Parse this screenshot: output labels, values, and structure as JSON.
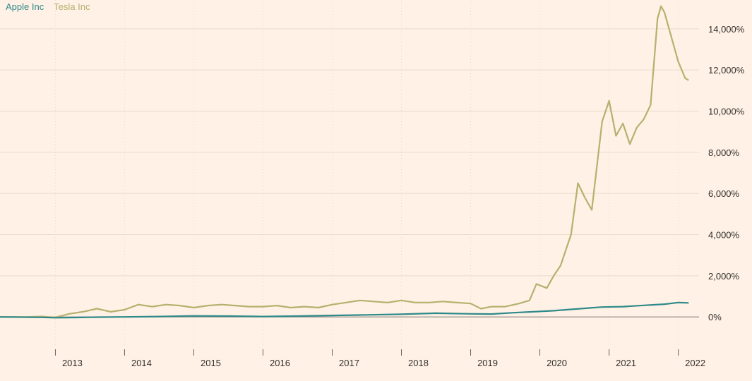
{
  "colors": {
    "background": "#fff1e5",
    "apple": "#2e8a8a",
    "tesla": "#b7b06e",
    "grid": "#e8dccd",
    "zero_line": "#8a8580"
  },
  "chart_data": {
    "type": "line",
    "legend_placement": "top-left",
    "grid": true,
    "y_axis_position": "right",
    "ylim": [
      -1400,
      15400
    ],
    "xlim": [
      2012.2,
      2022.3
    ],
    "y_ticks": [
      0,
      2000,
      4000,
      6000,
      8000,
      10000,
      12000,
      14000
    ],
    "y_tick_labels": [
      "0%",
      "2,000%",
      "4,000%",
      "6,000%",
      "8,000%",
      "10,000%",
      "12,000%",
      "14,000%"
    ],
    "x_ticks": [
      2013,
      2014,
      2015,
      2016,
      2017,
      2018,
      2019,
      2020,
      2021,
      2022
    ],
    "x_tick_labels": [
      "2013",
      "2014",
      "2015",
      "2016",
      "2017",
      "2018",
      "2019",
      "2020",
      "2021",
      "2022"
    ],
    "series": [
      {
        "name": "Apple Inc",
        "color": "#2e8a8a",
        "x": [
          2012.2,
          2012.8,
          2013.0,
          2013.3,
          2013.6,
          2014.0,
          2014.5,
          2015.0,
          2015.5,
          2016.0,
          2016.5,
          2017.0,
          2017.5,
          2018.0,
          2018.5,
          2019.0,
          2019.3,
          2019.6,
          2019.9,
          2020.2,
          2020.5,
          2020.7,
          2020.9,
          2021.2,
          2021.5,
          2021.8,
          2022.0,
          2022.15
        ],
        "values": [
          0,
          -20,
          -40,
          -30,
          -10,
          0,
          20,
          50,
          40,
          20,
          40,
          70,
          100,
          130,
          180,
          150,
          140,
          200,
          250,
          300,
          380,
          430,
          480,
          500,
          560,
          620,
          700,
          680
        ]
      },
      {
        "name": "Tesla Inc",
        "color": "#b7b06e",
        "x": [
          2012.2,
          2012.6,
          2012.8,
          2013.0,
          2013.2,
          2013.4,
          2013.6,
          2013.8,
          2014.0,
          2014.2,
          2014.4,
          2014.6,
          2014.8,
          2015.0,
          2015.2,
          2015.4,
          2015.6,
          2015.8,
          2016.0,
          2016.2,
          2016.4,
          2016.6,
          2016.8,
          2017.0,
          2017.2,
          2017.4,
          2017.6,
          2017.8,
          2018.0,
          2018.2,
          2018.4,
          2018.6,
          2018.8,
          2019.0,
          2019.15,
          2019.3,
          2019.5,
          2019.7,
          2019.85,
          2019.95,
          2020.1,
          2020.2,
          2020.3,
          2020.45,
          2020.55,
          2020.65,
          2020.75,
          2020.9,
          2021.0,
          2021.1,
          2021.2,
          2021.3,
          2021.4,
          2021.5,
          2021.6,
          2021.7,
          2021.75,
          2021.8,
          2021.9,
          2022.0,
          2022.1,
          2022.15
        ],
        "values": [
          0,
          0,
          20,
          -20,
          150,
          250,
          400,
          250,
          350,
          600,
          500,
          600,
          550,
          450,
          550,
          600,
          550,
          500,
          500,
          550,
          450,
          500,
          450,
          600,
          700,
          800,
          750,
          700,
          800,
          700,
          700,
          750,
          700,
          650,
          400,
          500,
          500,
          650,
          800,
          1600,
          1400,
          2000,
          2500,
          4000,
          6500,
          5800,
          5200,
          9500,
          10500,
          8800,
          9400,
          8400,
          9200,
          9600,
          10300,
          14500,
          15100,
          14800,
          13600,
          12400,
          11600,
          11500
        ]
      }
    ]
  }
}
